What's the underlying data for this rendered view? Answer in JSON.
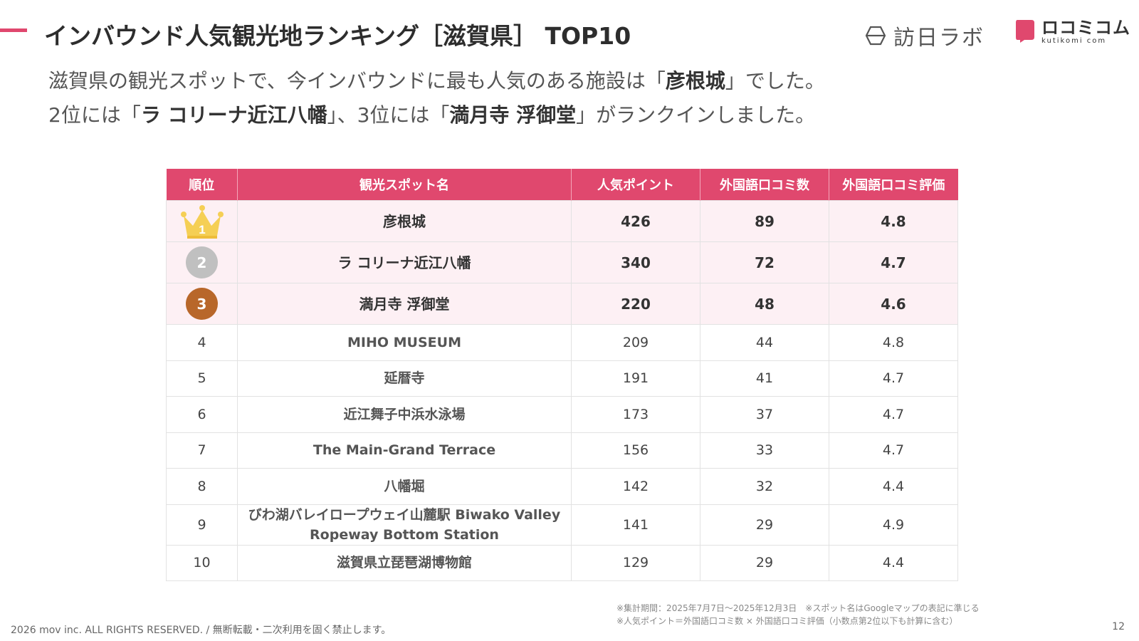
{
  "header": {
    "title": "インバウンド人気観光地ランキング［滋賀県］ TOP10",
    "brand_houmon": "訪日ラボ",
    "brand_kuchikomi": "ロコミコム",
    "brand_kuchikomi_sub": "kutikomi com"
  },
  "lead": {
    "l1_a": "滋賀県の観光スポットで、今インバウンドに最も人気のある施設は「",
    "l1_b": "彦根城",
    "l1_c": "」でした。",
    "l2_a": "2位には「",
    "l2_b": "ラ コリーナ近江八幡",
    "l2_c": "」、3位には「",
    "l2_d": "満月寺 浮御堂",
    "l2_e": "」がランクインしました。"
  },
  "table": {
    "headers": [
      "順位",
      "観光スポット名",
      "人気ポイント",
      "外国語口コミ数",
      "外国語口コミ評価"
    ],
    "rows": [
      {
        "rank": "1",
        "name": "彦根城",
        "points": "426",
        "reviews": "89",
        "rating": "4.8"
      },
      {
        "rank": "2",
        "name": "ラ コリーナ近江八幡",
        "points": "340",
        "reviews": "72",
        "rating": "4.7"
      },
      {
        "rank": "3",
        "name": "満月寺 浮御堂",
        "points": "220",
        "reviews": "48",
        "rating": "4.6"
      },
      {
        "rank": "4",
        "name": "MIHO MUSEUM",
        "points": "209",
        "reviews": "44",
        "rating": "4.8"
      },
      {
        "rank": "5",
        "name": "延暦寺",
        "points": "191",
        "reviews": "41",
        "rating": "4.7"
      },
      {
        "rank": "6",
        "name": "近江舞子中浜水泳場",
        "points": "173",
        "reviews": "37",
        "rating": "4.7"
      },
      {
        "rank": "7",
        "name": "The Main-Grand Terrace",
        "points": "156",
        "reviews": "33",
        "rating": "4.7"
      },
      {
        "rank": "8",
        "name": "八幡堀",
        "points": "142",
        "reviews": "32",
        "rating": "4.4"
      },
      {
        "rank": "9",
        "name": "びわ湖バレイロープウェイ山麓駅 Biwako Valley",
        "name2": "Ropeway Bottom Station",
        "points": "141",
        "reviews": "29",
        "rating": "4.9"
      },
      {
        "rank": "10",
        "name": "滋賀県立琵琶湖博物館",
        "points": "129",
        "reviews": "29",
        "rating": "4.4"
      }
    ]
  },
  "notes": {
    "line1": "※集計期間：2025年7月7日〜2025年12月3日　※スポット名はGoogleマップの表記に準じる",
    "line2": "※人気ポイント＝外国語口コミ数 × 外国語口コミ評価（小数点第2位以下も計算に含む）"
  },
  "footer": {
    "copyright": "2026 mov inc. ALL RIGHTS RESERVED. / 無断転載・二次利用を固く禁止します。",
    "page": "12"
  },
  "colors": {
    "accent": "#e0486e",
    "top_row_bg": "#fdf0f4",
    "gold": "#f5cf55",
    "silver": "#c0c0c0",
    "bronze": "#b8672a"
  },
  "icons": {
    "rank1": "crown-icon",
    "rank2": "silver-medal-icon",
    "rank3": "bronze-medal-icon"
  }
}
